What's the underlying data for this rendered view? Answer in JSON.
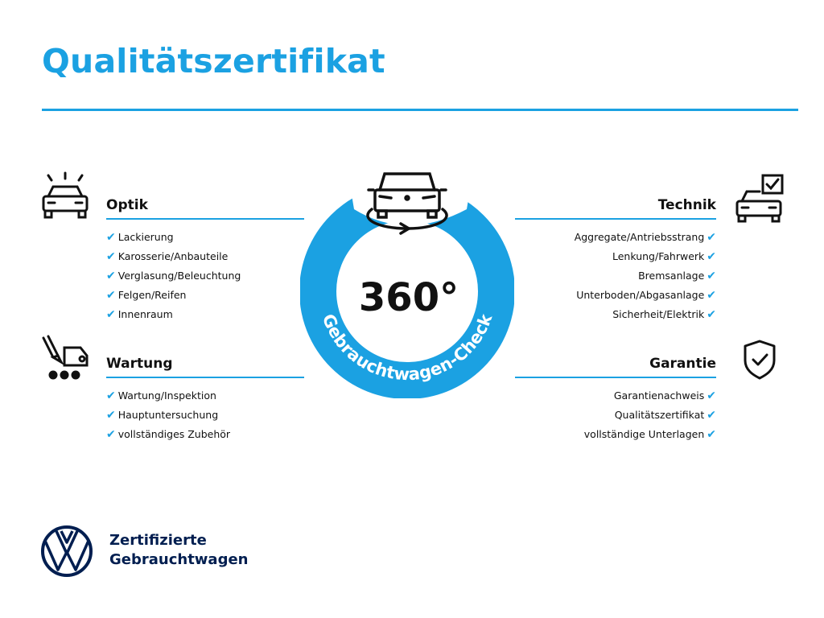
{
  "title": "Qualitätszertifikat",
  "center": {
    "value": "360°",
    "arc_text": "Gebrauchtwagen-Check"
  },
  "sections": {
    "optik": {
      "heading": "Optik",
      "items": [
        "Lackierung",
        "Karosserie/Anbauteile",
        "Verglasung/Beleuchtung",
        "Felgen/Reifen",
        "Innenraum"
      ]
    },
    "wartung": {
      "heading": "Wartung",
      "items": [
        "Wartung/Inspektion",
        "Hauptuntersuchung",
        "vollständiges Zubehör"
      ]
    },
    "technik": {
      "heading": "Technik",
      "items": [
        "Aggregate/Antriebsstrang",
        "Lenkung/Fahrwerk",
        "Bremsanlage",
        "Unterboden/Abgasanlage",
        "Sicherheit/Elektrik"
      ]
    },
    "garantie": {
      "heading": "Garantie",
      "items": [
        "Garantienachweis",
        "Qualitätszertifikat",
        "vollständige Unterlagen"
      ]
    }
  },
  "check_glyph": "✔",
  "brand": {
    "line1": "Zertifizierte",
    "line2": "Gebrauchtwagen"
  },
  "colors": {
    "accent": "#1ba1e2",
    "brand_navy": "#001e50",
    "text": "#111111"
  },
  "icons": [
    "car-lights-icon",
    "car-service-icon",
    "car-checklist-icon",
    "shield-check-icon",
    "car-360-icon",
    "vw-logo"
  ]
}
